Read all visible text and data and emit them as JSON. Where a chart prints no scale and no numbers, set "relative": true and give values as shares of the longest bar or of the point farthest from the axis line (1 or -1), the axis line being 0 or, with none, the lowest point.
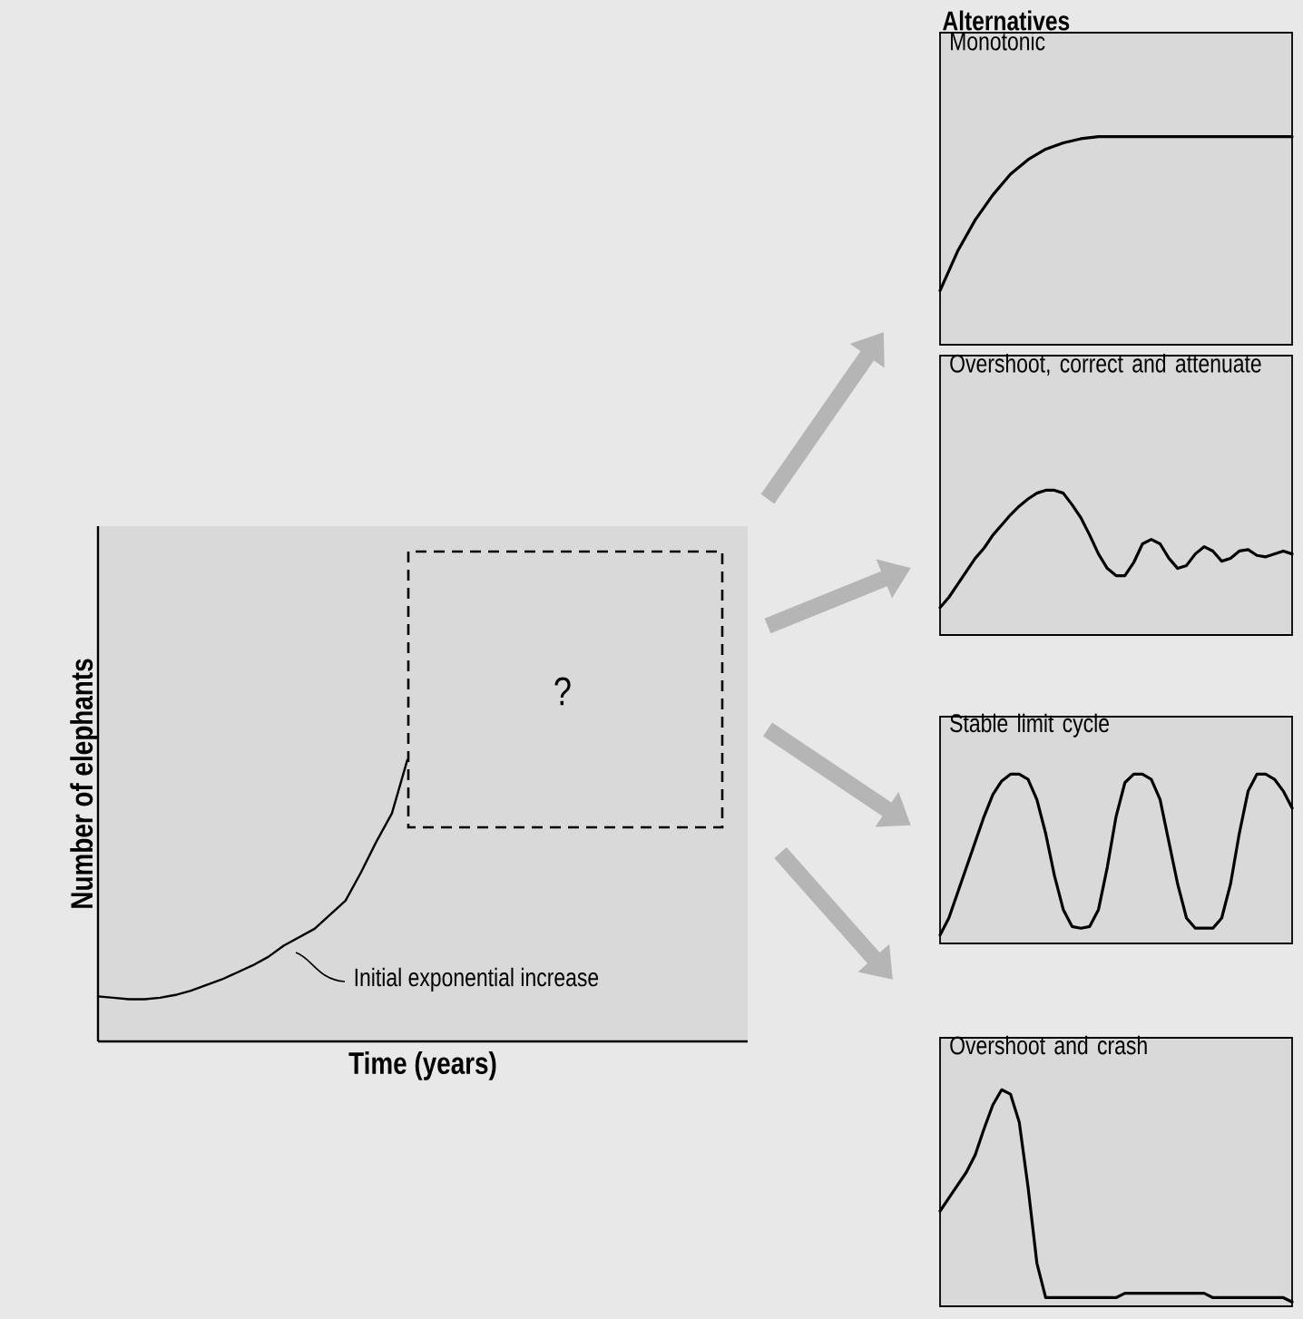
{
  "chart_data": [
    {
      "type": "line",
      "relative": true,
      "xlabel": "Time (years)",
      "ylabel": "Number of elephants",
      "annotations": [
        "Initial exponential increase",
        "?"
      ],
      "categories": [
        null,
        null,
        null,
        null,
        null,
        null,
        null,
        null,
        null,
        null,
        null,
        null,
        null,
        null,
        null,
        null,
        null,
        null,
        null,
        null,
        null,
        null,
        null,
        null,
        null,
        null,
        null,
        null,
        null,
        null,
        null,
        null,
        null,
        null,
        null,
        null,
        null,
        null,
        null,
        null,
        null,
        null,
        null
      ],
      "series": [
        {
          "color": "#000000",
          "values": [
            0.16,
            0.155,
            0.15,
            0.15,
            0.155,
            0.165,
            0.18,
            0.2,
            0.22,
            0.245,
            0.27,
            0.3,
            0.34,
            0.37,
            0.4,
            0.45,
            0.5,
            0.6,
            0.71,
            0.81,
            1.0,
            null,
            null,
            null,
            null,
            null,
            null,
            null,
            null,
            null,
            null,
            null,
            null,
            null,
            null,
            null,
            null,
            null,
            null,
            null,
            null,
            null,
            null
          ]
        }
      ]
    },
    {
      "type": "line",
      "relative": true,
      "title": "Monotonic",
      "annotations": [
        "Alternatives"
      ],
      "categories": [
        null,
        null,
        null,
        null,
        null,
        null,
        null,
        null,
        null,
        null,
        null,
        null,
        null,
        null,
        null,
        null,
        null,
        null,
        null,
        null,
        null
      ],
      "series": [
        {
          "color": "#000000",
          "values": [
            0.26,
            0.45,
            0.6,
            0.72,
            0.82,
            0.89,
            0.94,
            0.97,
            0.99,
            1.0,
            1.0,
            1.0,
            1.0,
            1.0,
            1.0,
            1.0,
            1.0,
            1.0,
            1.0,
            1.0,
            1.0
          ]
        }
      ]
    },
    {
      "type": "line",
      "relative": true,
      "title": "Overshoot, correct and attenuate",
      "categories": [
        null,
        null,
        null,
        null,
        null,
        null,
        null,
        null,
        null,
        null,
        null,
        null,
        null,
        null,
        null,
        null,
        null,
        null,
        null,
        null,
        null,
        null,
        null,
        null,
        null,
        null,
        null,
        null,
        null,
        null,
        null,
        null,
        null,
        null,
        null,
        null,
        null,
        null,
        null,
        null,
        null
      ],
      "series": [
        {
          "color": "#000000",
          "values": [
            0.19,
            0.26,
            0.35,
            0.44,
            0.53,
            0.6,
            0.69,
            0.76,
            0.83,
            0.89,
            0.94,
            0.98,
            1.0,
            1.0,
            0.98,
            0.9,
            0.81,
            0.69,
            0.56,
            0.46,
            0.41,
            0.41,
            0.5,
            0.63,
            0.66,
            0.63,
            0.53,
            0.46,
            0.48,
            0.56,
            0.61,
            0.58,
            0.51,
            0.53,
            0.58,
            0.59,
            0.55,
            0.54,
            0.56,
            0.58,
            0.56
          ]
        }
      ]
    },
    {
      "type": "line",
      "relative": true,
      "title": "Stable limit cycle",
      "categories": [
        null,
        null,
        null,
        null,
        null,
        null,
        null,
        null,
        null,
        null,
        null,
        null,
        null,
        null,
        null,
        null,
        null,
        null,
        null,
        null,
        null,
        null,
        null,
        null,
        null,
        null,
        null,
        null,
        null,
        null,
        null,
        null,
        null,
        null,
        null,
        null,
        null,
        null,
        null,
        null,
        null
      ],
      "series": [
        {
          "color": "#000000",
          "values": [
            0.05,
            0.15,
            0.3,
            0.45,
            0.6,
            0.75,
            0.88,
            0.96,
            1.0,
            1.0,
            0.97,
            0.85,
            0.65,
            0.4,
            0.2,
            0.1,
            0.09,
            0.1,
            0.2,
            0.45,
            0.75,
            0.95,
            1.0,
            1.0,
            0.97,
            0.85,
            0.6,
            0.35,
            0.15,
            0.09,
            0.09,
            0.09,
            0.15,
            0.35,
            0.65,
            0.9,
            1.0,
            1.0,
            0.97,
            0.9,
            0.8
          ]
        }
      ]
    },
    {
      "type": "line",
      "relative": true,
      "title": "Overshoot and crash",
      "categories": [
        null,
        null,
        null,
        null,
        null,
        null,
        null,
        null,
        null,
        null,
        null,
        null,
        null,
        null,
        null,
        null,
        null,
        null,
        null,
        null,
        null,
        null,
        null,
        null,
        null,
        null,
        null,
        null,
        null,
        null,
        null,
        null,
        null,
        null,
        null,
        null,
        null,
        null,
        null,
        null,
        null
      ],
      "series": [
        {
          "color": "#000000",
          "values": [
            0.44,
            0.5,
            0.56,
            0.62,
            0.7,
            0.82,
            0.93,
            1.0,
            0.98,
            0.85,
            0.55,
            0.2,
            0.04,
            0.04,
            0.04,
            0.04,
            0.04,
            0.04,
            0.04,
            0.04,
            0.04,
            0.06,
            0.06,
            0.06,
            0.06,
            0.06,
            0.06,
            0.06,
            0.06,
            0.06,
            0.06,
            0.04,
            0.04,
            0.04,
            0.04,
            0.04,
            0.04,
            0.04,
            0.04,
            0.04,
            0.02
          ]
        }
      ]
    }
  ]
}
